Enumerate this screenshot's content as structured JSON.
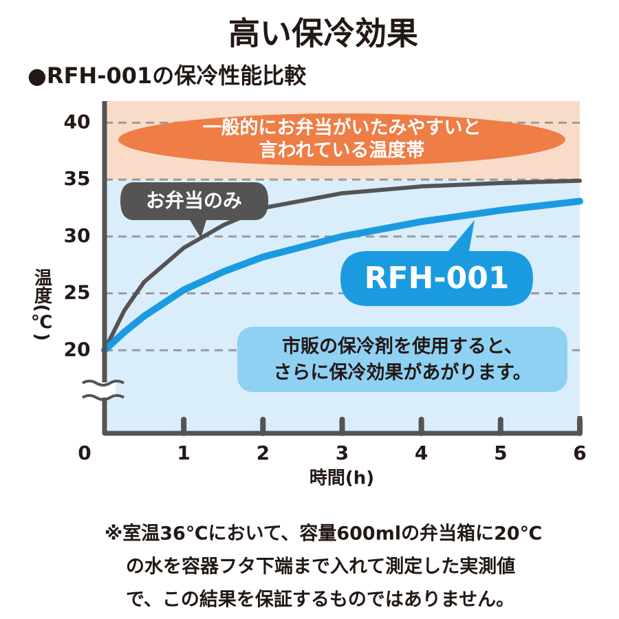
{
  "chart_data": {
    "type": "line",
    "title": "高い保冷効果",
    "subtitle": "●RFH-001の保冷性能比較",
    "y_label": "温度(℃)",
    "x_label": "時間(h)",
    "x": [
      0,
      0.25,
      0.5,
      1,
      1.5,
      2,
      3,
      4,
      5,
      6
    ],
    "series": [
      {
        "name": "お弁当のみ",
        "color": "#555353",
        "values": [
          20,
          23.5,
          26,
          29,
          31,
          32.5,
          33.8,
          34.4,
          34.7,
          34.9
        ]
      },
      {
        "name": "RFH-001",
        "color": "#1a9be0",
        "values": [
          20,
          21.6,
          23,
          25.3,
          26.9,
          28.2,
          30,
          31.3,
          32.3,
          33.1
        ]
      }
    ],
    "xlim": [
      0,
      6
    ],
    "ylim": [
      12.7,
      41.9
    ],
    "xticks": [
      0,
      1,
      2,
      3,
      4,
      5,
      6
    ],
    "yticks": [
      20,
      25,
      30,
      35,
      40
    ],
    "grid": true,
    "zone": {
      "from": 35,
      "text": [
        "一般的にお弁当がいたみやすいと",
        "言われている温度帯"
      ]
    },
    "annotation": [
      "市販の保冷剤を使用すると、",
      "さらに保冷効果があがります。"
    ],
    "footnote": [
      "※室温36℃において、容量600mlの弁当箱に20℃",
      "の水を容器フタ下端まで入れて測定した実測値",
      "で、この結果を保証するものではありません。"
    ]
  }
}
